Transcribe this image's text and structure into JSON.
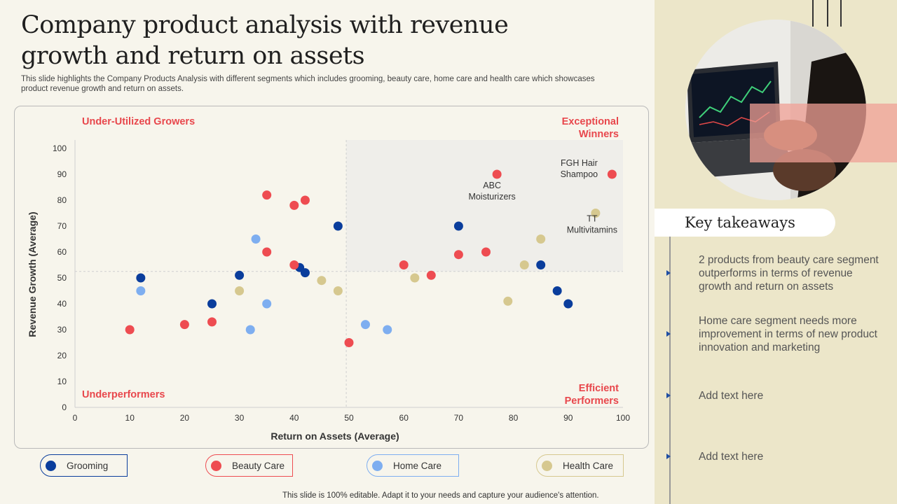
{
  "slide": {
    "title": "Company product analysis with revenue growth and return on assets",
    "subtitle": "This slide highlights the Company Products Analysis with different segments which includes grooming, beauty care, home care and health care which showcases product revenue growth and return on assets.",
    "footer": "This slide is 100% editable. Adapt it to your needs and capture your audience's attention."
  },
  "quadrants": {
    "top_left": "Under-Utilized Growers",
    "top_right": "Exceptional Winners",
    "bottom_left": "Underperformers",
    "bottom_right": "Efficient Performers"
  },
  "legend": [
    {
      "label": "Grooming",
      "color": "#0a3d9c"
    },
    {
      "label": "Beauty Care",
      "color": "#ee4c51"
    },
    {
      "label": "Home Care",
      "color": "#7eaef0"
    },
    {
      "label": "Health Care",
      "color": "#d6c88f"
    }
  ],
  "takeaways": {
    "heading": "Key takeaways",
    "items": [
      "2 products from beauty care segment outperforms in terms of revenue growth and return on assets",
      "Home care segment needs more improvement in terms of new product innovation and marketing",
      "Add text here",
      "Add text here"
    ]
  },
  "chart_data": {
    "type": "scatter",
    "xlabel": "Return on Assets (Average)",
    "ylabel": "Revenue Growth (Average)",
    "xlim": [
      0,
      100
    ],
    "ylim": [
      0,
      100
    ],
    "xticks": [
      0,
      10,
      20,
      30,
      40,
      50,
      60,
      70,
      80,
      90,
      100
    ],
    "yticks": [
      0,
      10,
      20,
      30,
      40,
      50,
      60,
      70,
      80,
      90,
      100
    ],
    "quadrant_split": {
      "x": 49.5,
      "y": 52.5
    },
    "series": [
      {
        "name": "Grooming",
        "color": "#0a3d9c",
        "points": [
          [
            12,
            50
          ],
          [
            25,
            40
          ],
          [
            30,
            51
          ],
          [
            41,
            54
          ],
          [
            42,
            52
          ],
          [
            48,
            70
          ],
          [
            70,
            70
          ],
          [
            85,
            55
          ],
          [
            88,
            45
          ],
          [
            90,
            40
          ]
        ]
      },
      {
        "name": "Beauty Care",
        "color": "#ee4c51",
        "points": [
          [
            10,
            30
          ],
          [
            20,
            32
          ],
          [
            25,
            33
          ],
          [
            35,
            82
          ],
          [
            35,
            60
          ],
          [
            40,
            78
          ],
          [
            40,
            55
          ],
          [
            42,
            80
          ],
          [
            50,
            25
          ],
          [
            60,
            55
          ],
          [
            65,
            51
          ],
          [
            70,
            59
          ],
          [
            75,
            60
          ],
          [
            77,
            90
          ],
          [
            98,
            90
          ]
        ]
      },
      {
        "name": "Home Care",
        "color": "#7eaef0",
        "points": [
          [
            12,
            45
          ],
          [
            32,
            30
          ],
          [
            33,
            65
          ],
          [
            35,
            40
          ],
          [
            53,
            32
          ],
          [
            57,
            30
          ]
        ]
      },
      {
        "name": "Health Care",
        "color": "#d6c88f",
        "points": [
          [
            30,
            45
          ],
          [
            45,
            49
          ],
          [
            48,
            45
          ],
          [
            62,
            50
          ],
          [
            79,
            41
          ],
          [
            82,
            55
          ],
          [
            85,
            65
          ],
          [
            95,
            75
          ]
        ]
      }
    ],
    "annotations": [
      {
        "text": "ABC\nMoisturizers",
        "x": 77,
        "y": 90
      },
      {
        "text": "FGH Hair\nShampoo",
        "x": 98,
        "y": 90
      },
      {
        "text": "TT\nMultivitamins",
        "x": 95,
        "y": 75
      }
    ]
  }
}
